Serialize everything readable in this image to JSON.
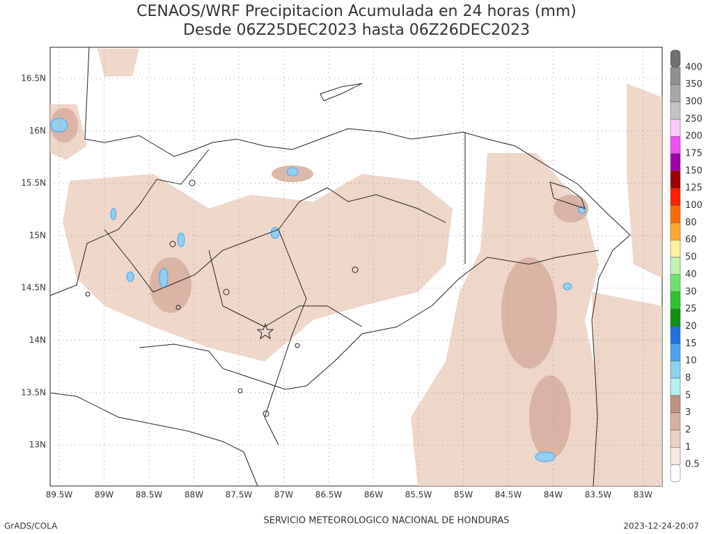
{
  "header": {
    "title": "CENAOS/WRF Precipitacion Acumulada en 24 horas (mm)",
    "subtitle": "Desde 06Z25DEC2023 hasta 06Z26DEC2023"
  },
  "map": {
    "lat_labels": [
      "16.5N",
      "16N",
      "15.5N",
      "15N",
      "14.5N",
      "14N",
      "13.5N",
      "13N"
    ],
    "lon_labels": [
      "89.5W",
      "89W",
      "88.5W",
      "88W",
      "87.5W",
      "87W",
      "86.5W",
      "86W",
      "85.5W",
      "85W",
      "84.5W",
      "84W",
      "83.5W",
      "83W"
    ]
  },
  "legend": {
    "labels": [
      "400",
      "350",
      "300",
      "250",
      "200",
      "175",
      "150",
      "125",
      "100",
      "80",
      "60",
      "50",
      "40",
      "30",
      "25",
      "20",
      "15",
      "10",
      "8",
      "5",
      "3",
      "2",
      "1",
      "0.5"
    ],
    "colors": [
      "#707070",
      "#909090",
      "#a8a8a8",
      "#c4c4c4",
      "#fcc8fc",
      "#f050f0",
      "#a000a8",
      "#a00000",
      "#ff2000",
      "#ff6a00",
      "#ffa830",
      "#fff0a0",
      "#c0f4b0",
      "#70e070",
      "#30c030",
      "#109010",
      "#2070e0",
      "#50a0f0",
      "#90d0f0",
      "#b4f0f0",
      "#c09080",
      "#d8b0a0",
      "#ecd0c0",
      "#f8eae0",
      "#ffffff"
    ]
  },
  "footer": {
    "left": "GrADS/COLA",
    "center": "SERVICIO METEOROLOGICO NACIONAL DE HONDURAS",
    "right": "2023-12-24-20:07"
  }
}
